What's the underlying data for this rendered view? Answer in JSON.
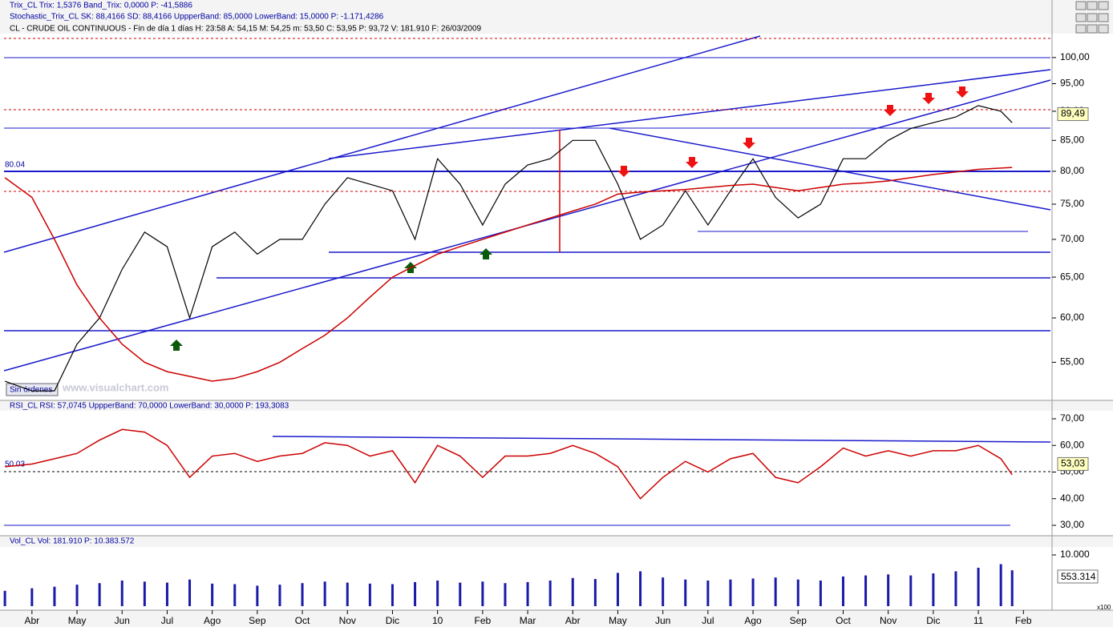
{
  "indicators": [
    "Trix_CL  Trix: 1,5376  Band_Trix: 0,0000  P: -41,5886",
    "Stochastic_Trix_CL  SK: 88,4166  SD: 88,4166  UppperBand: 85,0000  LowerBand: 15,0000  P: -1.171,4286"
  ],
  "button_label": "Sin órdenes",
  "watermark": "www.visualchart.com",
  "chart_data": [
    {
      "type": "line",
      "title": "CL - CRUDE OIL CONTINUOUS - Fin de día 1 días  H: 23:58  A: 54,15  M: 54,25  m: 53,50  C: 53,95  P: 93,72  V: 181.910  F: 26/03/2009",
      "log_scale": true,
      "x": [
        -0.6,
        0,
        0.5,
        1,
        1.5,
        2,
        2.5,
        3,
        3.5,
        4,
        4.5,
        5,
        5.5,
        6,
        6.5,
        7,
        7.5,
        8,
        8.5,
        9,
        9.5,
        10,
        10.5,
        11,
        11.5,
        12,
        12.5,
        13,
        13.5,
        14,
        14.5,
        15,
        15.5,
        16,
        16.5,
        17,
        17.5,
        18,
        18.5,
        19,
        19.5,
        20,
        20.5,
        21,
        21.5,
        21.75
      ],
      "xlim": [
        -0.62,
        22.6
      ],
      "xticks": [
        {
          "value": 0,
          "label": "Abr"
        },
        {
          "value": 1,
          "label": "May"
        },
        {
          "value": 2,
          "label": "Jun"
        },
        {
          "value": 3,
          "label": "Jul"
        },
        {
          "value": 4,
          "label": "Ago"
        },
        {
          "value": 5,
          "label": "Sep"
        },
        {
          "value": 6,
          "label": "Oct"
        },
        {
          "value": 7,
          "label": "Nov"
        },
        {
          "value": 8,
          "label": "Dic"
        },
        {
          "value": 9,
          "label": "10"
        },
        {
          "value": 10,
          "label": "Feb"
        },
        {
          "value": 11,
          "label": "Mar"
        },
        {
          "value": 12,
          "label": "Abr"
        },
        {
          "value": 13,
          "label": "May"
        },
        {
          "value": 14,
          "label": "Jun"
        },
        {
          "value": 15,
          "label": "Jul"
        },
        {
          "value": 16,
          "label": "Ago"
        },
        {
          "value": 17,
          "label": "Sep"
        },
        {
          "value": 18,
          "label": "Oct"
        },
        {
          "value": 19,
          "label": "Nov"
        },
        {
          "value": 20,
          "label": "Dic"
        },
        {
          "value": 21,
          "label": "11"
        },
        {
          "value": 22,
          "label": "Feb"
        }
      ],
      "series": [
        {
          "color": "#000000",
          "values": [
            53,
            52,
            52,
            57,
            60,
            66,
            71,
            69,
            60,
            69,
            71,
            68,
            70,
            70,
            75,
            79,
            78,
            77,
            70,
            82,
            78,
            72,
            78,
            81,
            82,
            85,
            85,
            78,
            70,
            72,
            77,
            72,
            77,
            82,
            76,
            73,
            75,
            82,
            82,
            85,
            87,
            88,
            89,
            91,
            90,
            88
          ]
        },
        {
          "color": "#cc0000",
          "values": [
            79,
            76,
            70,
            64,
            60,
            57,
            55,
            54,
            53.5,
            53,
            53.3,
            54,
            55,
            56.5,
            58,
            60,
            62.5,
            65,
            66.5,
            68,
            69,
            70,
            71,
            72,
            73,
            74,
            75,
            76.5,
            76.8,
            77,
            77.2,
            77.5,
            77.8,
            78,
            77.5,
            77,
            77.5,
            78,
            78.2,
            78.5,
            79,
            79.5,
            79.9,
            80.3,
            80.5,
            80.6
          ]
        }
      ],
      "ylim": [
        51.2,
        104.8
      ],
      "yticks": [
        {
          "value": 55,
          "label": "55,00"
        },
        {
          "value": 60,
          "label": "60,00"
        },
        {
          "value": 65,
          "label": "65,00"
        },
        {
          "value": 70,
          "label": "70,00"
        },
        {
          "value": 75,
          "label": "75,00"
        },
        {
          "value": 80,
          "label": "80,00"
        },
        {
          "value": 85,
          "label": "85,00"
        },
        {
          "value": 90,
          "label": "90,00"
        },
        {
          "value": 95,
          "label": "95,00"
        },
        {
          "value": 100,
          "label": "100,00"
        }
      ],
      "level_label": "80.04",
      "last_value": {
        "value": 89.49,
        "label": "89,49"
      }
    },
    {
      "type": "line",
      "title": "RSI_CL  RSI: 57,0745  UppperBand: 70,0000  LowerBand: 30,0000  P: 193,3083",
      "x": [
        -0.6,
        0,
        0.5,
        1,
        1.5,
        2,
        2.5,
        3,
        3.5,
        4,
        4.5,
        5,
        5.5,
        6,
        6.5,
        7,
        7.5,
        8,
        8.5,
        9,
        9.5,
        10,
        10.5,
        11,
        11.5,
        12,
        12.5,
        13,
        13.5,
        14,
        14.5,
        15,
        15.5,
        16,
        16.5,
        17,
        17.5,
        18,
        18.5,
        19,
        19.5,
        20,
        20.5,
        21,
        21.5,
        21.75
      ],
      "series": [
        {
          "color": "#cc0000",
          "values": [
            52,
            53,
            55,
            57,
            62,
            66,
            65,
            60,
            48,
            56,
            57,
            54,
            56,
            57,
            61,
            60,
            56,
            58,
            46,
            60,
            56,
            48,
            56,
            56,
            57,
            60,
            57,
            52,
            40,
            48,
            54,
            50,
            55,
            57,
            48,
            46,
            52,
            59,
            56,
            58,
            56,
            58,
            58,
            60,
            55,
            49
          ]
        }
      ],
      "ylim": [
        27.3,
        72.4
      ],
      "yticks": [
        {
          "value": 30,
          "label": "30,00"
        },
        {
          "value": 40,
          "label": "40,00"
        },
        {
          "value": 50,
          "label": "50,00"
        },
        {
          "value": 60,
          "label": "60,00"
        },
        {
          "value": 70,
          "label": "70,00"
        }
      ],
      "level_label": "50.03",
      "last_value": {
        "value": 53.03,
        "label": "53,03"
      }
    },
    {
      "type": "bar",
      "title": "Vol_CL  Vol: 181.910  P: 10.383.572",
      "x": [
        -0.6,
        0,
        0.5,
        1,
        1.5,
        2,
        2.5,
        3,
        3.5,
        4,
        4.5,
        5,
        5.5,
        6,
        6.5,
        7,
        7.5,
        8,
        8.5,
        9,
        9.5,
        10,
        10.5,
        11,
        11.5,
        12,
        12.5,
        13,
        13.5,
        14,
        14.5,
        15,
        15.5,
        16,
        16.5,
        17,
        17.5,
        18,
        18.5,
        19,
        19.5,
        20,
        20.5,
        21,
        21.5,
        21.75
      ],
      "color": "#1a1aa8",
      "values": [
        3000,
        3500,
        3800,
        4200,
        4500,
        5000,
        4800,
        4600,
        5200,
        4400,
        4300,
        4000,
        4200,
        4500,
        4800,
        4600,
        4400,
        4300,
        4700,
        5000,
        4600,
        4800,
        4500,
        4700,
        5000,
        5500,
        5300,
        6500,
        6800,
        5600,
        5200,
        5000,
        5200,
        5400,
        5600,
        5200,
        5000,
        5800,
        6000,
        6200,
        6000,
        6400,
        6800,
        7500,
        8200,
        7000
      ],
      "ylim": [
        0,
        11250
      ],
      "yticks": [
        {
          "value": 10000,
          "label": "10.000"
        }
      ],
      "current_label": "553.314",
      "multiplier_label": "x100"
    }
  ]
}
